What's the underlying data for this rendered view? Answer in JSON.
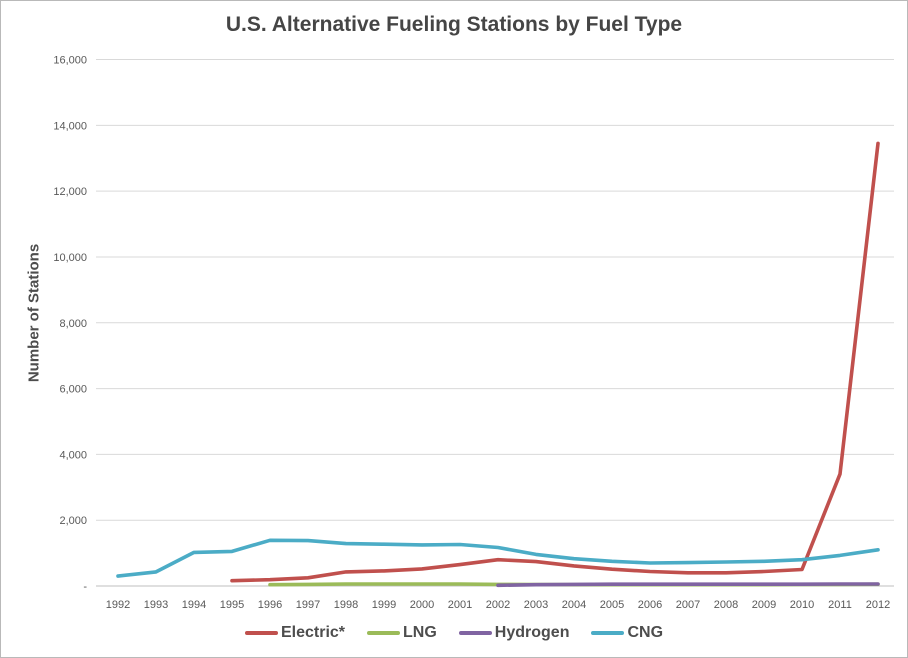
{
  "chart_data": {
    "type": "line",
    "title": "U.S. Alternative Fueling Stations by Fuel Type",
    "xlabel": "",
    "ylabel": "Number of Stations",
    "ylim": [
      0,
      16000
    ],
    "ytick_interval": 2000,
    "ytick_labels": [
      "-",
      "2,000",
      "4,000",
      "6,000",
      "8,000",
      "10,000",
      "12,000",
      "14,000",
      "16,000"
    ],
    "grid": true,
    "legend_position": "bottom",
    "categories": [
      "1992",
      "1993",
      "1994",
      "1995",
      "1996",
      "1997",
      "1998",
      "1999",
      "2000",
      "2001",
      "2002",
      "2003",
      "2004",
      "2005",
      "2006",
      "2007",
      "2008",
      "2009",
      "2010",
      "2011",
      "2012"
    ],
    "series": [
      {
        "name": "Electric*",
        "color": "#C0504D",
        "values": [
          null,
          null,
          null,
          160,
          190,
          250,
          430,
          460,
          520,
          650,
          800,
          740,
          610,
          510,
          440,
          400,
          400,
          440,
          500,
          3400,
          13450
        ]
      },
      {
        "name": "LNG",
        "color": "#9BBB59",
        "values": [
          null,
          null,
          null,
          null,
          40,
          50,
          60,
          60,
          60,
          60,
          50,
          45,
          40,
          40,
          40,
          40,
          40,
          40,
          45,
          50,
          55
        ]
      },
      {
        "name": "Hydrogen",
        "color": "#8064A2",
        "values": [
          null,
          null,
          null,
          null,
          null,
          null,
          null,
          null,
          null,
          null,
          20,
          40,
          50,
          55,
          55,
          55,
          55,
          55,
          55,
          60,
          60
        ]
      },
      {
        "name": "CNG",
        "color": "#4BACC6",
        "values": [
          300,
          430,
          1020,
          1050,
          1390,
          1380,
          1290,
          1270,
          1250,
          1260,
          1170,
          960,
          830,
          750,
          700,
          710,
          730,
          750,
          800,
          930,
          1100
        ]
      }
    ],
    "axis_colors": {
      "gridline": "#D9D9D9",
      "axis_line": "#BFBFBF",
      "tick_text": "#595959"
    }
  }
}
